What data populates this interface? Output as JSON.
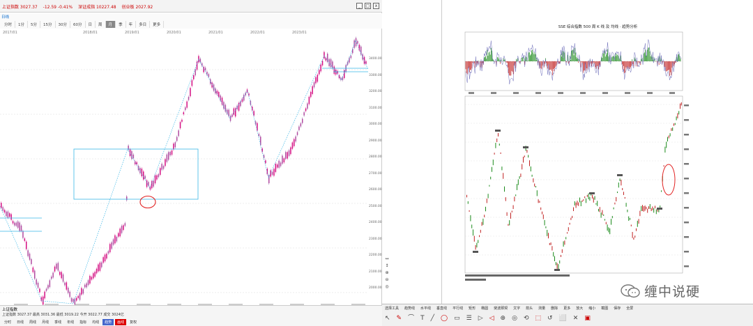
{
  "left_window": {
    "quote_items": [
      "上证指数 3027.37",
      "-12.59  -0.41%",
      "深证成指 10227.48",
      "创业板 2027.92"
    ],
    "window_controls": [
      "_",
      "□",
      "x"
    ],
    "period_tag": "日线",
    "periods": [
      "分时",
      "1分",
      "5分",
      "15分",
      "30分",
      "60分",
      "日",
      "周",
      "月",
      "季",
      "年",
      "多日",
      "更多"
    ],
    "active_period": "月",
    "time_labels": [
      "2017/01",
      "2018/01",
      "2019/01",
      "2020/01",
      "2021/01",
      "2022/01",
      "2023/01"
    ],
    "price_labels": [
      "3400.00",
      "3300.00",
      "3200.00",
      "3100.00",
      "3000.00",
      "2900.00",
      "2800.00",
      "2700.00",
      "2600.00",
      "2500.00",
      "2400.00",
      "2300.00",
      "2200.00",
      "2100.00",
      "2000.00"
    ],
    "bottom_title": "上证指数",
    "bottom_info": "上证指数 3027.37  最高 3031.36  最低 3019.22  今开 3022.77  成交 3024亿",
    "bottom_tabs": [
      "分时",
      "日线",
      "周线",
      "月线",
      "季线",
      "年线",
      "指标",
      "均线",
      "趋势",
      "画线",
      "复权"
    ]
  },
  "side_tools": [
    "↔",
    "↕",
    "⊕",
    "⊖",
    "◎"
  ],
  "right_document": {
    "title": "SSE 综合指数 500 周 K 线 及 均线 · 趋势分析",
    "watermark_text": "缠中说硬"
  },
  "right_toolbar": {
    "labels": [
      "选择工具",
      "趋势线",
      "水平线",
      "垂直线",
      "平行线",
      "矩形",
      "椭圆",
      "斐波那契",
      "文字",
      "箭头",
      "测量",
      "删除",
      "更多",
      "放大",
      "缩小",
      "截图",
      "保存",
      "全屏"
    ],
    "icons": [
      "↖",
      "✎",
      "⌒",
      "T",
      "╱",
      "◯",
      "▭",
      "☰",
      "▷",
      "◁",
      "⊕",
      "◎",
      "⟲",
      "⬚",
      "↺",
      "⬜",
      "✕",
      "▣"
    ]
  },
  "colors": {
    "up_candle": "#d40d82",
    "down_candle": "#3aa0d8",
    "trend_line": "#39b6e6",
    "highlight_circle": "#e22222",
    "right_up": "#c02020",
    "right_down": "#1a8a1a"
  }
}
